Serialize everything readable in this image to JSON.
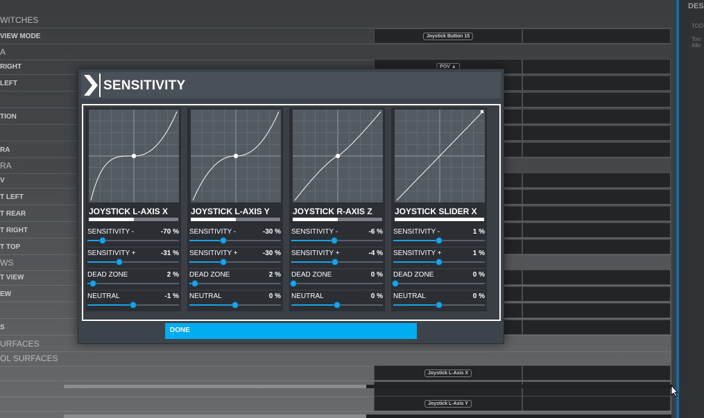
{
  "background": {
    "rows": [
      {
        "label": "WITCHES",
        "section": true
      },
      {
        "label": "VIEW MODE",
        "binding": "Joystick Button 15"
      },
      {
        "label": "A",
        "section": true
      },
      {
        "label": "RIGHT",
        "binding": "POV ▲"
      },
      {
        "label": "LEFT"
      },
      {
        "label": ""
      },
      {
        "label": "TION"
      },
      {
        "label": ""
      },
      {
        "label": "RA"
      },
      {
        "label": "RA",
        "section": true
      },
      {
        "label": "V"
      },
      {
        "label": "T LEFT"
      },
      {
        "label": "T REAR"
      },
      {
        "label": "T RIGHT"
      },
      {
        "label": "T TOP"
      },
      {
        "label": "WS",
        "section": true
      },
      {
        "label": "T VIEW"
      },
      {
        "label": "EW"
      },
      {
        "label": ""
      },
      {
        "label": "S"
      },
      {
        "label": "URFACES",
        "section": true
      },
      {
        "label": "OL SURFACES",
        "section": true
      },
      {
        "label": "",
        "binding": "Joystick L-Axis X"
      },
      {
        "label": ""
      },
      {
        "label": "",
        "binding": "Joystick L-Axis Y"
      }
    ],
    "right_panel": {
      "title": "DES",
      "line1": "TOO",
      "line2": "Too",
      "line3": "Allo"
    }
  },
  "dialog": {
    "title": "SENSITIVITY",
    "done_label": "DONE",
    "axes": [
      {
        "title": "JOYSTICK L-AXIS X",
        "bar_fill": 0.5,
        "params": [
          {
            "label": "SENSITIVITY -",
            "value": "-70 %",
            "level": 0.17
          },
          {
            "label": "SENSITIVITY +",
            "value": "-31 %",
            "level": 0.35
          },
          {
            "label": "DEAD ZONE",
            "value": "2 %",
            "level": 0.06
          },
          {
            "label": "NEUTRAL",
            "value": "-1 %",
            "level": 0.5
          }
        ]
      },
      {
        "title": "JOYSTICK L-AXIS Y",
        "bar_fill": 0.5,
        "params": [
          {
            "label": "SENSITIVITY -",
            "value": "-30 %",
            "level": 0.37
          },
          {
            "label": "SENSITIVITY +",
            "value": "-30 %",
            "level": 0.37
          },
          {
            "label": "DEAD ZONE",
            "value": "2 %",
            "level": 0.06
          },
          {
            "label": "NEUTRAL",
            "value": "0 %",
            "level": 0.5
          }
        ]
      },
      {
        "title": "JOYSTICK R-AXIS Z",
        "bar_fill": 0.5,
        "params": [
          {
            "label": "SENSITIVITY -",
            "value": "-6 %",
            "level": 0.47
          },
          {
            "label": "SENSITIVITY +",
            "value": "-4 %",
            "level": 0.48
          },
          {
            "label": "DEAD ZONE",
            "value": "0 %",
            "level": 0.02
          },
          {
            "label": "NEUTRAL",
            "value": "0 %",
            "level": 0.5
          }
        ]
      },
      {
        "title": "JOYSTICK SLIDER X",
        "bar_fill": 1.0,
        "params": [
          {
            "label": "SENSITIVITY -",
            "value": "1 %",
            "level": 0.5
          },
          {
            "label": "SENSITIVITY +",
            "value": "1 %",
            "level": 0.5
          },
          {
            "label": "DEAD ZONE",
            "value": "0 %",
            "level": 0.02
          },
          {
            "label": "NEUTRAL",
            "value": "0 %",
            "level": 0.5
          }
        ]
      }
    ]
  },
  "colors": {
    "accent": "#00adf0",
    "slider": "#1aa3e6"
  }
}
